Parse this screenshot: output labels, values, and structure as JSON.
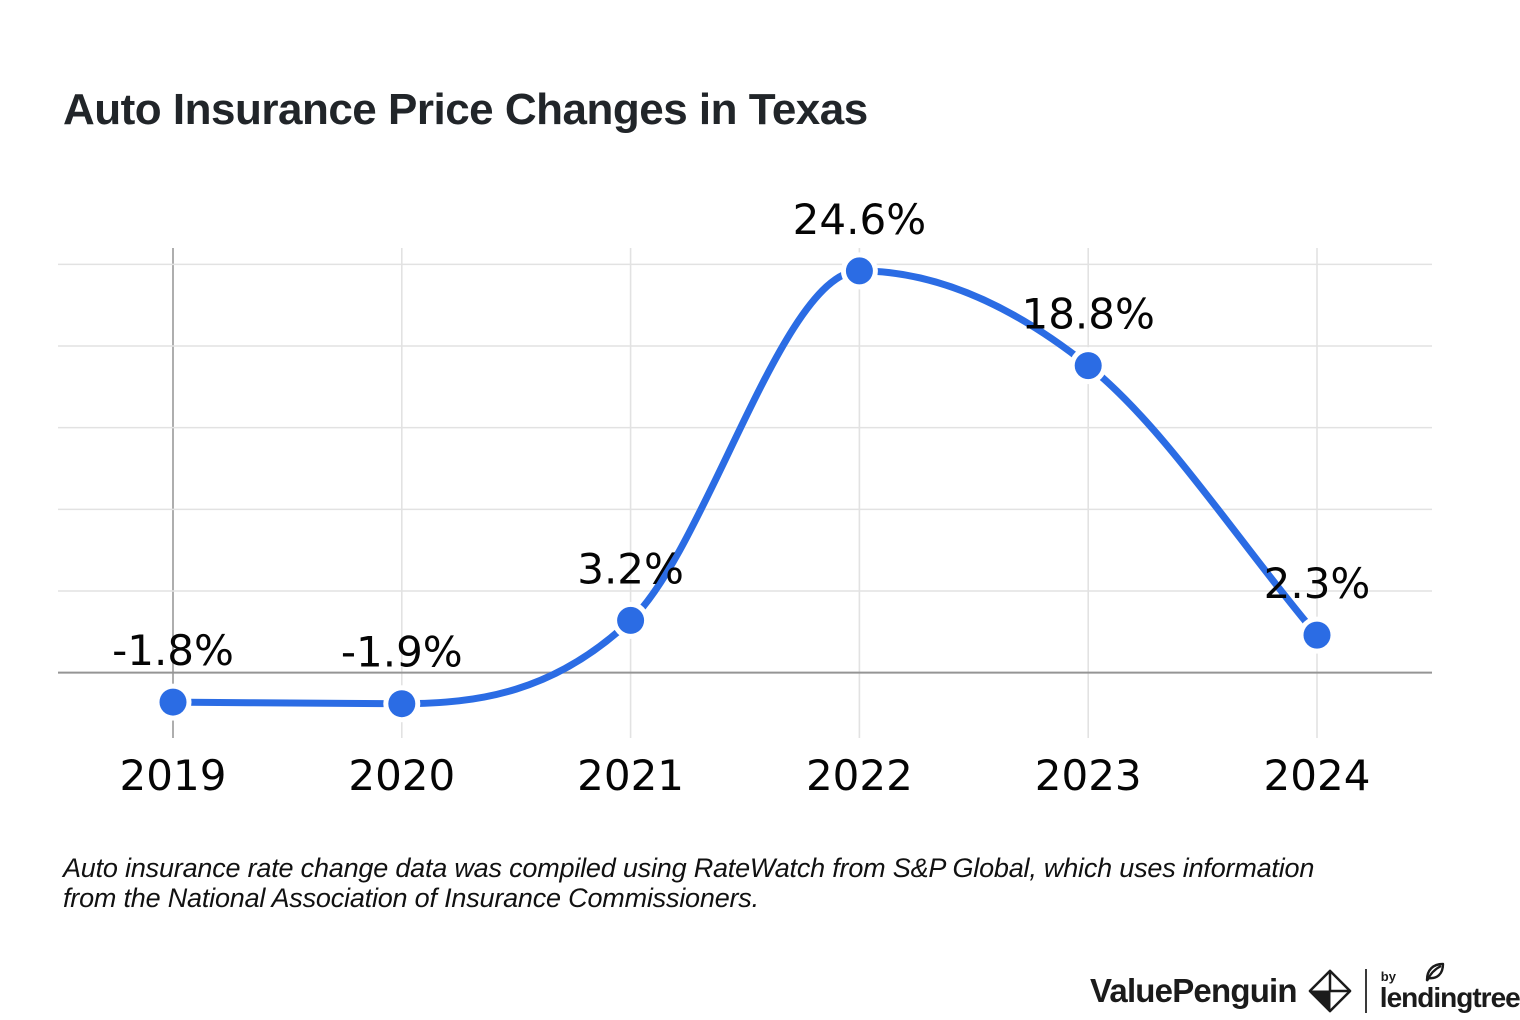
{
  "page": {
    "title": "Auto Insurance Price Changes in Texas"
  },
  "chart_data": {
    "type": "line",
    "title": "Auto Insurance Price Changes in Texas",
    "categories": [
      "2019",
      "2020",
      "2021",
      "2022",
      "2023",
      "2024"
    ],
    "values": [
      -1.8,
      -1.9,
      3.2,
      24.6,
      18.8,
      2.3
    ],
    "point_labels": [
      "-1.8%",
      "-1.9%",
      "3.2%",
      "24.6%",
      "18.8%",
      "2.3%"
    ],
    "xlabel": "",
    "ylabel": "",
    "ylim": [
      -4,
      26
    ],
    "y_gridlines": [
      25,
      20,
      15,
      10,
      5,
      0
    ],
    "zero_line_value": 0,
    "grid": "on",
    "legend": "none",
    "y_axis_labels": "hidden",
    "colors": {
      "line": "#2b6ce4",
      "point": "#2b6ce4",
      "point_halo": "#ffffff",
      "grid_light": "#e2e2e2",
      "grid_dark": "#959595",
      "axis_dark": "#999999",
      "label_text": "#050505"
    }
  },
  "footnote": {
    "line1": "Auto insurance rate change data was compiled using RateWatch from S&P Global, which uses information",
    "line2": "from the National Association of Insurance Commissioners."
  },
  "logo": {
    "valuepenguin": "ValuePenguin",
    "by": "by",
    "lendingtree": "lendingtree",
    "trademark": "·"
  }
}
